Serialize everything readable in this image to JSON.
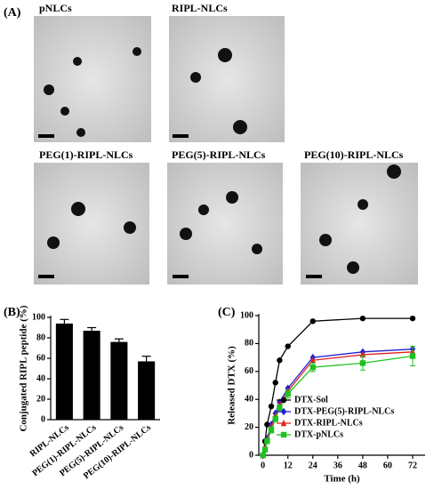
{
  "panels": {
    "label": "(A)",
    "images": [
      "pNLCs",
      "RIPL-NLCs",
      "PEG(1)-RIPL-NLCs",
      "PEG(5)-RIPL-NLCs",
      "PEG(10)-RIPL-NLCs"
    ]
  },
  "chart_data": [
    {
      "type": "bar",
      "label": "(B)",
      "y_label": "Conjugated RIPL peptide (%)",
      "categories": [
        "RIPL-NLCs",
        "PEG(1)-RIPL-NLCs",
        "PEG(5)-RIPL-NLCs",
        "PEG(10)-RIPL-NLCs"
      ],
      "values": [
        94,
        87,
        76,
        57
      ],
      "errors": [
        4,
        3,
        3,
        5
      ],
      "color": "#000000",
      "ylim": [
        0,
        100
      ],
      "yticks": [
        0,
        20,
        40,
        60,
        80,
        100
      ]
    },
    {
      "type": "line",
      "label": "(C)",
      "x_label": "Time (h)",
      "y_label": "Released DTX (%)",
      "x": [
        0,
        1,
        2,
        4,
        6,
        8,
        12,
        24,
        48,
        72
      ],
      "series": [
        {
          "name": "DTX-Sol",
          "color": "#000000",
          "marker": "circle",
          "values": [
            0,
            10,
            22,
            35,
            52,
            68,
            78,
            96,
            98,
            98
          ]
        },
        {
          "name": "DTX-PEG(5)-RIPL-NLCs",
          "color": "#1f1fd6",
          "marker": "diamond",
          "values": [
            0,
            5,
            12,
            22,
            30,
            38,
            48,
            70,
            74,
            76
          ]
        },
        {
          "name": "DTX-RIPL-NLCs",
          "color": "#e02020",
          "marker": "triangle",
          "values": [
            0,
            5,
            11,
            20,
            28,
            36,
            46,
            68,
            72,
            74
          ]
        },
        {
          "name": "DTX-pNLCs",
          "color": "#20c020",
          "marker": "square",
          "values": [
            0,
            4,
            10,
            18,
            26,
            34,
            44,
            63,
            66,
            71
          ],
          "errors": [
            0,
            1,
            1,
            2,
            2,
            2,
            3,
            3,
            5,
            7
          ]
        }
      ],
      "xlim": [
        -2,
        78
      ],
      "xticks": [
        0,
        12,
        24,
        36,
        48,
        60,
        72
      ],
      "ylim": [
        0,
        100
      ],
      "yticks": [
        0,
        20,
        40,
        60,
        80,
        100
      ],
      "legend": "lower right"
    }
  ]
}
